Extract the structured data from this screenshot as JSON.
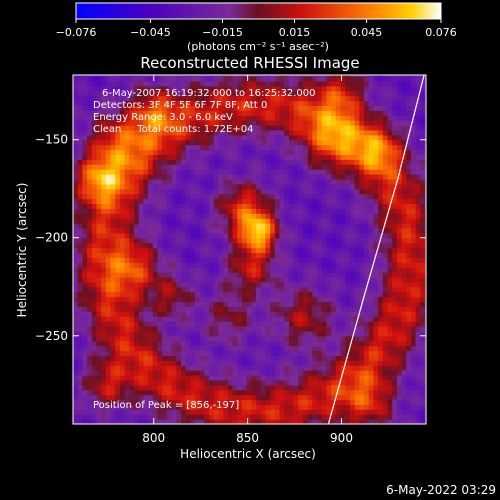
{
  "chart_data": {
    "type": "heatmap",
    "title": "Reconstructed RHESSI Image",
    "xlabel": "Heliocentric X (arcsec)",
    "ylabel": "Heliocentric Y (arcsec)",
    "xlim": [
      757,
      945
    ],
    "ylim": [
      -295,
      -117
    ],
    "x_ticks": [
      800,
      850,
      900
    ],
    "y_ticks": [
      -150,
      -200,
      -250
    ],
    "x_tick_labels": [
      "800",
      "850",
      "900"
    ],
    "y_tick_labels": [
      "−150",
      "−200",
      "−250"
    ],
    "colorbar": {
      "range": [
        -0.076,
        0.076
      ],
      "ticks": [
        -0.076,
        -0.045,
        -0.015,
        0.015,
        0.045,
        0.076
      ],
      "tick_labels": [
        "−0.076",
        "−0.045",
        "−0.015",
        "0.015",
        "0.045",
        "0.076"
      ],
      "unit_label": "(photons cm⁻² s⁻¹ asec⁻²)"
    },
    "annotations": [
      "6-May-2007 16:19:32.000 to 16:25:32.000",
      "Detectors: 3F 4F 5F 6F 7F 8F, Att 0",
      "Energy Range: 3.0 - 6.0 keV",
      "Clean     Total counts: 1.72E+04"
    ],
    "peak": {
      "x": 856,
      "y": -197,
      "label": "Position of Peak = [856,-197]"
    },
    "limb_curve": [
      [
        944,
        -117
      ],
      [
        930,
        -170
      ],
      [
        912,
        -230
      ],
      [
        893,
        -295
      ]
    ],
    "bright_sources": [
      {
        "x": 856,
        "y": -197,
        "value": 0.076,
        "radius": 7
      },
      {
        "x": 848,
        "y": -185,
        "value": 0.055,
        "radius": 10
      },
      {
        "x": 852,
        "y": -215,
        "value": 0.045,
        "radius": 9
      },
      {
        "x": 770,
        "y": -170,
        "value": 0.058,
        "radius": 9
      },
      {
        "x": 780,
        "y": -150,
        "value": 0.045,
        "radius": 11
      },
      {
        "x": 790,
        "y": -215,
        "value": 0.05,
        "radius": 10
      },
      {
        "x": 800,
        "y": -135,
        "value": 0.045,
        "radius": 9
      },
      {
        "x": 775,
        "y": -275,
        "value": 0.042,
        "radius": 9
      },
      {
        "x": 810,
        "y": -230,
        "value": 0.035,
        "radius": 8
      },
      {
        "x": 895,
        "y": -150,
        "value": 0.045,
        "radius": 11
      },
      {
        "x": 900,
        "y": -125,
        "value": 0.04,
        "radius": 9
      },
      {
        "x": 920,
        "y": -155,
        "value": 0.04,
        "radius": 9
      },
      {
        "x": 880,
        "y": -240,
        "value": 0.04,
        "radius": 11
      },
      {
        "x": 915,
        "y": -285,
        "value": 0.042,
        "radius": 10
      },
      {
        "x": 840,
        "y": -240,
        "value": 0.03,
        "radius": 10
      }
    ]
  },
  "footer": {
    "timestamp": "6-May-2022 03:29"
  }
}
